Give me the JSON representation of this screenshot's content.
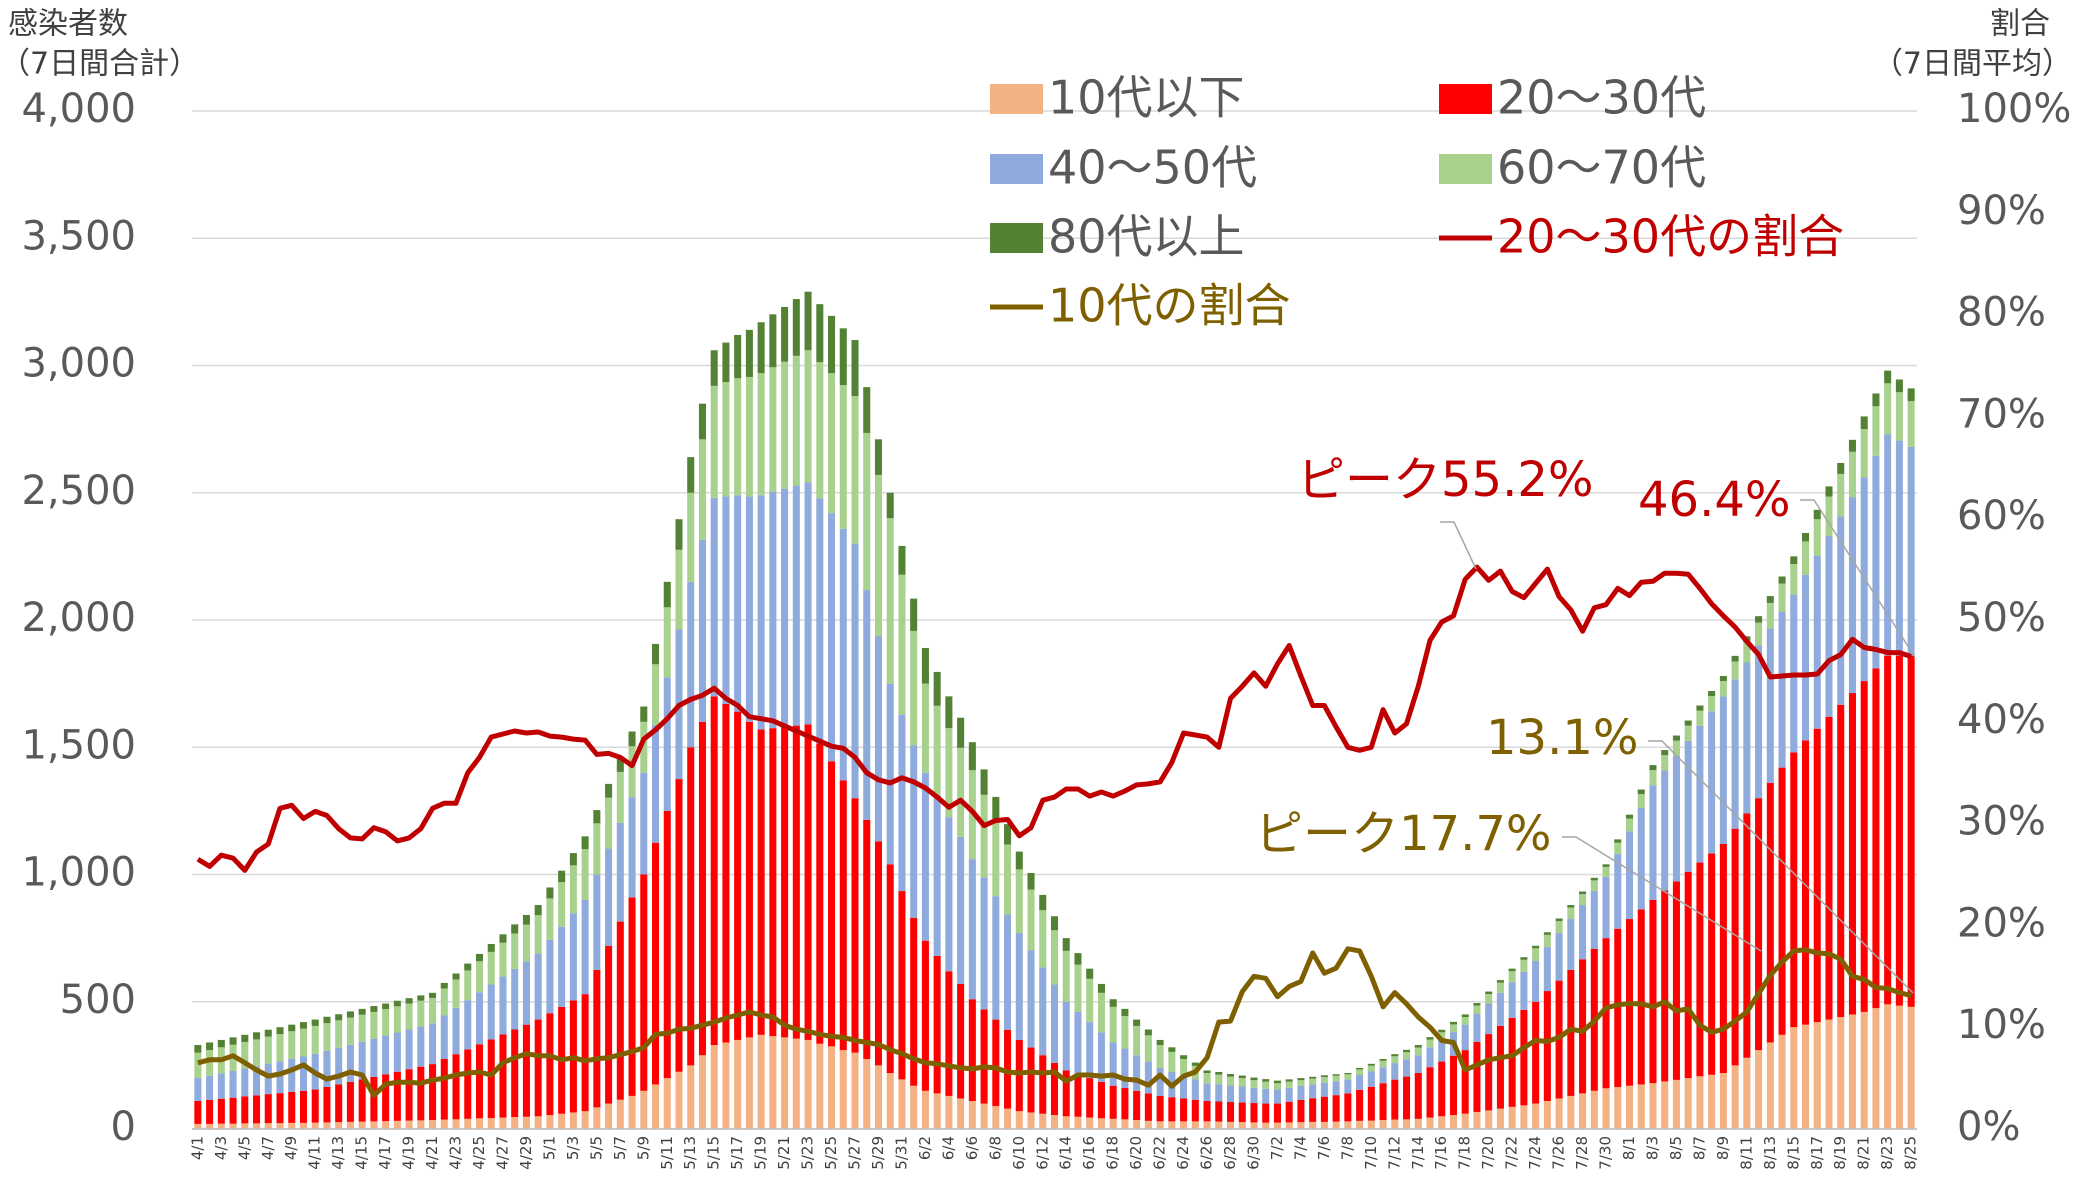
{
  "chart_data": {
    "type": "bar",
    "y_label": [
      "感染者数",
      "（7日間合計）"
    ],
    "y2_label": [
      "割合",
      "（7日間平均）"
    ],
    "categories": [
      "4/1",
      null,
      "4/3",
      null,
      "4/5",
      null,
      "4/7",
      null,
      "4/9",
      null,
      "4/11",
      null,
      "4/13",
      null,
      "4/15",
      null,
      "4/17",
      null,
      "4/19",
      null,
      "4/21",
      null,
      "4/23",
      null,
      "4/25",
      null,
      "4/27",
      null,
      "4/29",
      null,
      "5/1",
      null,
      "5/3",
      null,
      "5/5",
      null,
      "5/7",
      null,
      "5/9",
      null,
      "5/11",
      null,
      "5/13",
      null,
      "5/15",
      null,
      "5/17",
      null,
      "5/19",
      null,
      "5/21",
      null,
      "5/23",
      null,
      "5/25",
      null,
      "5/27",
      null,
      "5/29",
      null,
      "5/31",
      null,
      "6/2",
      null,
      "6/4",
      null,
      "6/6",
      null,
      "6/8",
      null,
      "6/10",
      null,
      "6/12",
      null,
      "6/14",
      null,
      "6/16",
      null,
      "6/18",
      null,
      "6/20",
      null,
      "6/22",
      null,
      "6/24",
      null,
      "6/26",
      null,
      "6/28",
      null,
      "6/30",
      null,
      "7/2",
      null,
      "7/4",
      null,
      "7/6",
      null,
      "7/8",
      null,
      "7/10",
      null,
      "7/12",
      null,
      "7/14",
      null,
      "7/16",
      null,
      "7/18",
      null,
      "7/20",
      null,
      "7/22",
      null,
      "7/24",
      null,
      "7/26",
      null,
      "7/28",
      null,
      "7/30",
      null,
      "8/1",
      null,
      "8/3",
      null,
      "8/5",
      null,
      "8/7",
      null,
      "8/9",
      null,
      "8/11",
      null,
      "8/13",
      null,
      "8/15",
      null,
      "8/17",
      null,
      "8/19",
      null,
      "8/21",
      null,
      "8/23",
      null,
      "8/25"
    ],
    "series": [
      {
        "name": "10代以下",
        "color": "#f4b183",
        "values": [
          20,
          20,
          21,
          21,
          22,
          22,
          23,
          23,
          24,
          24,
          25,
          26,
          27,
          28,
          29,
          30,
          31,
          32,
          33,
          34,
          35,
          37,
          38,
          40,
          42,
          43,
          45,
          47,
          48,
          50,
          55,
          60,
          65,
          70,
          85,
          100,
          115,
          130,
          150,
          175,
          200,
          225,
          250,
          290,
          330,
          340,
          350,
          360,
          370,
          365,
          360,
          355,
          350,
          335,
          325,
          310,
          300,
          275,
          250,
          220,
          195,
          170,
          150,
          140,
          130,
          120,
          110,
          100,
          90,
          80,
          70,
          65,
          60,
          55,
          50,
          48,
          45,
          42,
          40,
          38,
          35,
          32,
          30,
          30,
          30,
          30,
          30,
          29,
          28,
          27,
          26,
          25,
          25,
          26,
          27,
          28,
          28,
          29,
          30,
          32,
          33,
          35,
          37,
          38,
          40,
          45,
          50,
          55,
          60,
          67,
          73,
          80,
          87,
          93,
          100,
          110,
          120,
          130,
          140,
          150,
          160,
          165,
          170,
          175,
          180,
          187,
          193,
          200,
          207,
          213,
          220,
          250,
          280,
          310,
          340,
          370,
          400,
          410,
          420,
          430,
          440,
          450,
          460,
          475,
          490,
          485,
          480
        ]
      },
      {
        "name": "20〜30代",
        "color": "#ff0000",
        "values": [
          90,
          94,
          98,
          102,
          106,
          110,
          114,
          118,
          122,
          126,
          130,
          139,
          148,
          157,
          166,
          175,
          184,
          193,
          202,
          211,
          220,
          238,
          256,
          273,
          291,
          309,
          327,
          344,
          362,
          380,
          400,
          420,
          440,
          460,
          540,
          620,
          700,
          780,
          850,
          950,
          1050,
          1150,
          1250,
          1310,
          1370,
          1330,
          1290,
          1240,
          1200,
          1210,
          1220,
          1230,
          1240,
          1180,
          1120,
          1060,
          1000,
          940,
          880,
          820,
          740,
          660,
          590,
          540,
          490,
          450,
          400,
          370,
          340,
          310,
          280,
          255,
          230,
          205,
          180,
          168,
          155,
          143,
          130,
          123,
          115,
          108,
          100,
          95,
          90,
          85,
          80,
          79,
          78,
          77,
          76,
          75,
          75,
          81,
          87,
          93,
          99,
          104,
          110,
          122,
          133,
          145,
          157,
          168,
          180,
          198,
          215,
          233,
          250,
          275,
          300,
          325,
          350,
          375,
          400,
          432,
          463,
          495,
          527,
          558,
          590,
          622,
          655,
          688,
          720,
          750,
          780,
          810,
          840,
          870,
          900,
          930,
          960,
          990,
          1020,
          1050,
          1080,
          1117,
          1153,
          1190,
          1227,
          1263,
          1300,
          1335,
          1370,
          1375,
          1380
        ]
      },
      {
        "name": "40〜50代",
        "color": "#8faadc",
        "values": [
          90,
          95,
          100,
          105,
          110,
          115,
          120,
          125,
          130,
          135,
          140,
          142,
          144,
          146,
          148,
          150,
          152,
          154,
          156,
          158,
          160,
          171,
          182,
          193,
          204,
          216,
          227,
          238,
          249,
          260,
          288,
          315,
          343,
          370,
          376,
          382,
          388,
          394,
          400,
          463,
          525,
          588,
          650,
          715,
          780,
          815,
          850,
          885,
          920,
          928,
          935,
          943,
          950,
          963,
          975,
          988,
          1000,
          903,
          807,
          710,
          693,
          677,
          660,
          633,
          605,
          578,
          550,
          518,
          485,
          453,
          420,
          383,
          345,
          308,
          270,
          245,
          220,
          195,
          170,
          155,
          140,
          125,
          110,
          100,
          90,
          80,
          70,
          68,
          65,
          63,
          60,
          58,
          55,
          55,
          55,
          55,
          55,
          55,
          55,
          58,
          60,
          63,
          65,
          68,
          70,
          78,
          85,
          93,
          100,
          110,
          120,
          130,
          140,
          150,
          160,
          173,
          187,
          200,
          213,
          227,
          240,
          293,
          345,
          398,
          450,
          472,
          493,
          515,
          537,
          558,
          580,
          587,
          593,
          600,
          607,
          613,
          620,
          650,
          680,
          710,
          740,
          770,
          800,
          835,
          870,
          845,
          820
        ]
      },
      {
        "name": "60〜70代",
        "color": "#a9d18e",
        "values": [
          100,
          101,
          102,
          103,
          104,
          105,
          106,
          107,
          108,
          109,
          110,
          109,
          108,
          107,
          106,
          105,
          104,
          103,
          102,
          101,
          100,
          106,
          111,
          117,
          122,
          128,
          133,
          139,
          144,
          150,
          163,
          175,
          188,
          200,
          200,
          200,
          200,
          200,
          200,
          238,
          275,
          313,
          350,
          395,
          440,
          450,
          460,
          470,
          480,
          490,
          500,
          510,
          520,
          535,
          550,
          565,
          580,
          617,
          633,
          650,
          550,
          450,
          350,
          350,
          350,
          350,
          350,
          325,
          300,
          275,
          250,
          238,
          225,
          213,
          200,
          185,
          170,
          155,
          140,
          128,
          115,
          103,
          90,
          78,
          65,
          53,
          40,
          38,
          35,
          33,
          30,
          28,
          25,
          24,
          23,
          22,
          22,
          21,
          20,
          22,
          23,
          25,
          27,
          28,
          30,
          30,
          30,
          30,
          30,
          33,
          37,
          40,
          43,
          47,
          50,
          48,
          47,
          45,
          43,
          42,
          40,
          45,
          50,
          55,
          60,
          60,
          60,
          60,
          60,
          60,
          60,
          70,
          80,
          90,
          100,
          110,
          120,
          132,
          143,
          155,
          167,
          178,
          190,
          195,
          200,
          190,
          180
        ]
      },
      {
        "name": "80代以上",
        "color": "#548235",
        "values": [
          30,
          30,
          29,
          29,
          28,
          28,
          27,
          27,
          26,
          26,
          25,
          25,
          24,
          24,
          23,
          23,
          22,
          22,
          21,
          21,
          20,
          22,
          24,
          27,
          29,
          31,
          33,
          36,
          38,
          40,
          43,
          45,
          48,
          50,
          52,
          54,
          56,
          58,
          60,
          80,
          100,
          120,
          140,
          140,
          140,
          155,
          170,
          185,
          200,
          208,
          215,
          223,
          230,
          228,
          225,
          223,
          220,
          180,
          140,
          100,
          113,
          127,
          140,
          133,
          125,
          118,
          110,
          100,
          90,
          80,
          70,
          65,
          60,
          55,
          50,
          45,
          40,
          35,
          30,
          28,
          25,
          23,
          20,
          18,
          15,
          13,
          10,
          10,
          10,
          10,
          10,
          10,
          10,
          9,
          8,
          7,
          7,
          6,
          5,
          6,
          7,
          7,
          8,
          9,
          10,
          10,
          10,
          10,
          10,
          10,
          10,
          10,
          10,
          10,
          10,
          10,
          10,
          10,
          10,
          10,
          10,
          13,
          15,
          18,
          20,
          20,
          20,
          20,
          20,
          20,
          20,
          22,
          23,
          25,
          27,
          28,
          30,
          33,
          37,
          40,
          43,
          47,
          50,
          50,
          50,
          50,
          50
        ]
      },
      {
        "name": "20〜30代の割合",
        "type": "line",
        "axis": "y2",
        "color": "#c00000",
        "values": [
          26.5,
          25.8,
          26.9,
          26.6,
          25.4,
          27.2,
          28.0,
          31.5,
          31.8,
          30.5,
          31.2,
          30.8,
          29.5,
          28.6,
          28.5,
          29.6,
          29.2,
          28.3,
          28.6,
          29.5,
          31.5,
          32.0,
          32.0,
          35.0,
          36.5,
          38.5,
          38.8,
          39.1,
          38.9,
          39.0,
          38.6,
          38.5,
          38.3,
          38.2,
          36.8,
          36.9,
          36.5,
          35.7,
          38.3,
          39.2,
          40.3,
          41.6,
          42.2,
          42.6,
          43.3,
          42.3,
          41.6,
          40.5,
          40.3,
          40.1,
          39.6,
          39.1,
          38.6,
          38.1,
          37.6,
          37.4,
          36.5,
          35.0,
          34.3,
          34.0,
          34.5,
          34.1,
          33.5,
          32.6,
          31.6,
          32.3,
          31.2,
          29.8,
          30.3,
          30.4,
          28.8,
          29.6,
          32.3,
          32.6,
          33.4,
          33.4,
          32.7,
          33.1,
          32.7,
          33.2,
          33.8,
          33.9,
          34.1,
          36.0,
          38.9,
          38.7,
          38.5,
          37.5,
          42.3,
          43.5,
          44.8,
          43.5,
          45.7,
          47.5,
          44.5,
          41.6,
          41.6,
          39.5,
          37.5,
          37.2,
          37.5,
          41.2,
          38.9,
          39.8,
          43.5,
          48.0,
          49.8,
          50.4,
          54.0,
          55.2,
          53.9,
          54.8,
          52.8,
          52.2,
          53.6,
          55.0,
          52.3,
          51.0,
          48.9,
          51.2,
          51.5,
          53.1,
          52.4,
          53.7,
          53.8,
          54.6,
          54.6,
          54.5,
          53.1,
          51.6,
          50.4,
          49.3,
          47.9,
          46.6,
          44.4,
          44.5,
          44.6,
          44.6,
          44.7,
          46.0,
          46.6,
          48.1,
          47.3,
          47.1,
          46.8,
          46.8,
          46.4
        ]
      },
      {
        "name": "10代の割合",
        "type": "line",
        "axis": "y2",
        "color": "#7f6000",
        "values": [
          6.5,
          6.8,
          6.8,
          7.2,
          6.5,
          5.8,
          5.2,
          5.4,
          5.8,
          6.3,
          5.5,
          4.9,
          5.2,
          5.6,
          5.3,
          3.3,
          4.4,
          4.6,
          4.6,
          4.5,
          4.8,
          5.0,
          5.3,
          5.5,
          5.6,
          5.3,
          6.5,
          7.0,
          7.4,
          7.2,
          7.2,
          6.8,
          7.0,
          6.7,
          6.9,
          7.0,
          7.3,
          7.6,
          8.0,
          9.3,
          9.4,
          9.8,
          9.9,
          10.2,
          10.5,
          10.9,
          11.2,
          11.5,
          11.2,
          11.0,
          10.2,
          9.8,
          9.6,
          9.3,
          9.1,
          9.0,
          8.7,
          8.5,
          8.3,
          7.8,
          7.4,
          6.9,
          6.5,
          6.4,
          6.2,
          6.0,
          5.9,
          6.1,
          6.0,
          5.6,
          5.5,
          5.6,
          5.5,
          5.6,
          4.7,
          5.3,
          5.3,
          5.2,
          5.3,
          4.9,
          4.8,
          4.3,
          5.3,
          4.2,
          5.2,
          5.6,
          7.0,
          10.5,
          10.6,
          13.5,
          15.0,
          14.8,
          13.0,
          14.0,
          14.5,
          17.3,
          15.3,
          15.8,
          17.7,
          17.5,
          15.0,
          12.0,
          13.4,
          12.3,
          11.0,
          10.0,
          8.7,
          8.5,
          5.8,
          6.3,
          6.8,
          7.0,
          7.2,
          8.0,
          8.7,
          8.6,
          9.0,
          9.8,
          9.6,
          10.6,
          11.9,
          12.2,
          12.3,
          12.3,
          12.0,
          12.5,
          11.6,
          11.8,
          10.2,
          9.5,
          9.8,
          10.6,
          11.5,
          13.3,
          15.1,
          16.4,
          17.5,
          17.6,
          17.3,
          17.2,
          16.7,
          15.0,
          14.7,
          13.9,
          13.8,
          13.4,
          13.1
        ]
      }
    ],
    "annotations": [
      {
        "text": "ピーク55.2%",
        "color": "#c00000"
      },
      {
        "text": "46.4%",
        "color": "#c00000"
      },
      {
        "text": "13.1%",
        "color": "#7f6000"
      },
      {
        "text": "ピーク17.7%",
        "color": "#7f6000"
      }
    ],
    "ylim": [
      0,
      4000
    ],
    "yticks": [
      0,
      500,
      {
        "value": 1000,
        "label": "1,000"
      },
      {
        "value": 1500,
        "label": "1,500"
      },
      {
        "value": 2000,
        "label": "2,000"
      },
      {
        "value": 2500,
        "label": "2,500"
      },
      {
        "value": 3000,
        "label": "3,000"
      },
      {
        "value": 3500,
        "label": "3,500"
      },
      {
        "value": 4000,
        "label": "4,000"
      }
    ],
    "y2lim": [
      0,
      100
    ],
    "y2ticks": [
      {
        "value": 0,
        "label": "0%"
      },
      {
        "value": 10,
        "label": "10%"
      },
      {
        "value": 20,
        "label": "20%"
      },
      {
        "value": 30,
        "label": "30%"
      },
      {
        "value": 40,
        "label": "40%"
      },
      {
        "value": 50,
        "label": "50%"
      },
      {
        "value": 60,
        "label": "60%"
      },
      {
        "value": 70,
        "label": "70%"
      },
      {
        "value": 80,
        "label": "80%"
      },
      {
        "value": 90,
        "label": "90%"
      },
      {
        "value": 100,
        "label": "100%"
      }
    ],
    "grid": true
  }
}
